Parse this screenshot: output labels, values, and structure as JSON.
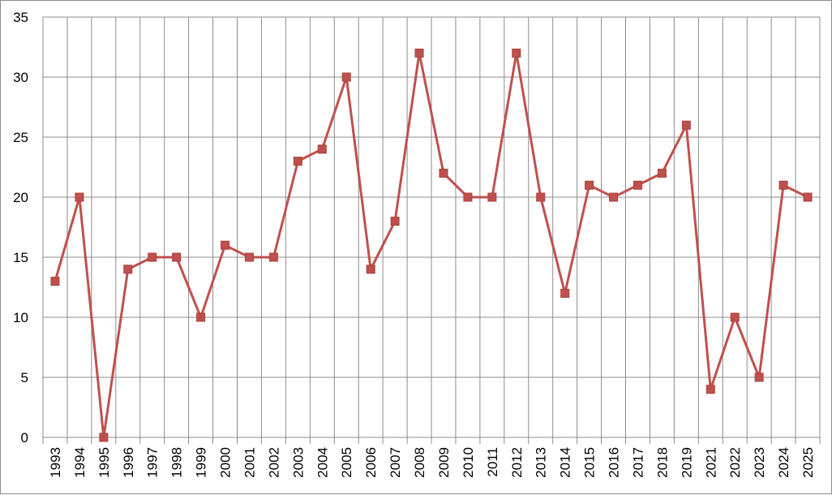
{
  "chart_data": {
    "type": "line",
    "title": "",
    "xlabel": "",
    "ylabel": "",
    "ylim": [
      0,
      35
    ],
    "yticks": [
      0,
      5,
      10,
      15,
      20,
      25,
      30,
      35
    ],
    "grid": true,
    "legend": "none",
    "categories": [
      "1993",
      "1994",
      "1995",
      "1996",
      "1997",
      "1998",
      "1999",
      "2000",
      "2001",
      "2002",
      "2003",
      "2004",
      "2005",
      "2006",
      "2007",
      "2008",
      "2009",
      "2010",
      "2011",
      "2012",
      "2013",
      "2014",
      "2015",
      "2016",
      "2017",
      "2018",
      "2019",
      "2021",
      "2022",
      "2023",
      "2024",
      "2025"
    ],
    "series": [
      {
        "color": "#c0504d",
        "marker": "square",
        "values": [
          13,
          20,
          0,
          14,
          15,
          15,
          10,
          16,
          15,
          15,
          23,
          24,
          30,
          14,
          18,
          32,
          22,
          20,
          20,
          32,
          20,
          12,
          21,
          20,
          21,
          22,
          26,
          4,
          10,
          5,
          21,
          20
        ]
      }
    ]
  }
}
